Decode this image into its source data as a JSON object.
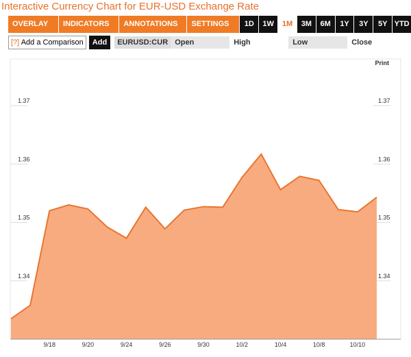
{
  "header": {
    "title": "Interactive Currency Chart for EUR-USD Exchange Rate"
  },
  "toolbar": {
    "menus": [
      "OVERLAY ▼",
      "INDICATORS ▼",
      "ANNOTATIONS ▼",
      "SETTINGS ▼"
    ],
    "ranges": [
      "1D",
      "1W",
      "1M",
      "3M",
      "6M",
      "1Y",
      "3Y",
      "5Y",
      "YTD"
    ],
    "selected": "1M"
  },
  "comparison": {
    "help": "[?]",
    "label": "Add a Comparison",
    "button": "Add"
  },
  "quote": {
    "symbol": "EURUSD:CUR",
    "fields": [
      "Open",
      "High",
      "Low",
      "Close"
    ]
  },
  "print": "Print",
  "chart_data": {
    "type": "area",
    "categories": [
      null,
      null,
      "9/18",
      null,
      "9/20",
      null,
      "9/24",
      null,
      "9/26",
      null,
      "9/30",
      null,
      "10/2",
      null,
      "10/4",
      null,
      "10/8",
      null,
      "10/10",
      null
    ],
    "values": [
      1.3335,
      1.3358,
      1.352,
      1.353,
      1.3523,
      1.3492,
      1.3473,
      1.3526,
      1.3489,
      1.3521,
      1.3527,
      1.3526,
      1.3577,
      1.3617,
      1.3556,
      1.3579,
      1.3572,
      1.3522,
      1.3518,
      1.3543
    ],
    "color": "#e8752e",
    "fill": "#f9ab80",
    "ylim": [
      1.33,
      1.378
    ],
    "yticks": [
      1.34,
      1.35,
      1.36,
      1.37
    ]
  }
}
